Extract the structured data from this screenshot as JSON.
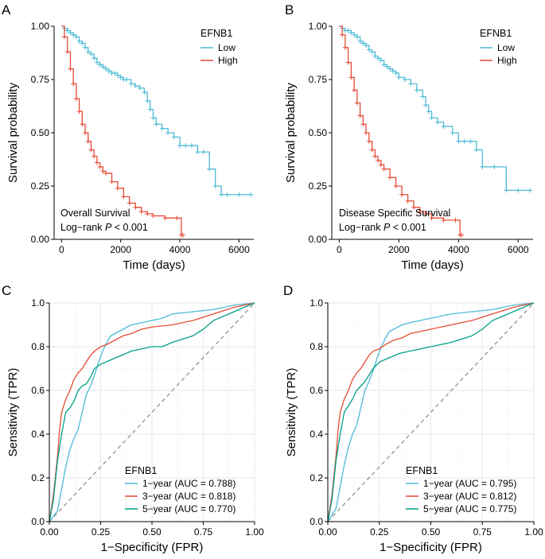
{
  "colors": {
    "low": "#4DBBD5",
    "high": "#E64B35",
    "y1": "#4DBBD5",
    "y3": "#E64B35",
    "y5": "#00A087",
    "grid": "#E6E6E6",
    "diag": "#888888"
  },
  "chart_data": [
    {
      "panel": "A",
      "type": "line",
      "title": "",
      "xlabel": "Time (days)",
      "ylabel": "Survival probability",
      "xlim": [
        -250,
        6500
      ],
      "ylim": [
        0,
        1
      ],
      "xticks": [
        0,
        2000,
        4000,
        6000
      ],
      "xtick_labels": [
        "0",
        "2000",
        "4000",
        "6000"
      ],
      "yticks": [
        0,
        0.25,
        0.5,
        0.75,
        1
      ],
      "ytick_labels": [
        "0.00",
        "0.25",
        "0.50",
        "0.75",
        "1.00"
      ],
      "legend_title": "EFNB1",
      "annotation_line1": "Overall Survival",
      "annotation_prefix": "Log−rank ",
      "annotation_italic": "P",
      "annotation_suffix": " < 0.001",
      "series": [
        {
          "name": "Low",
          "color_key": "low",
          "x": [
            0,
            100,
            200,
            300,
            400,
            500,
            600,
            700,
            800,
            900,
            1000,
            1100,
            1200,
            1300,
            1400,
            1500,
            1600,
            1700,
            1800,
            1900,
            2000,
            2100,
            2200,
            2350,
            2500,
            2650,
            2800,
            2900,
            3000,
            3100,
            3200,
            3400,
            3600,
            3800,
            4000,
            4200,
            4400,
            4600,
            4800,
            5000,
            5200,
            5400,
            5600,
            6000,
            6400
          ],
          "y": [
            1.0,
            0.99,
            0.98,
            0.97,
            0.96,
            0.95,
            0.93,
            0.92,
            0.9,
            0.88,
            0.87,
            0.85,
            0.83,
            0.82,
            0.81,
            0.8,
            0.79,
            0.78,
            0.78,
            0.77,
            0.76,
            0.75,
            0.75,
            0.73,
            0.72,
            0.71,
            0.69,
            0.65,
            0.61,
            0.57,
            0.54,
            0.52,
            0.5,
            0.48,
            0.44,
            0.44,
            0.44,
            0.41,
            0.41,
            0.33,
            0.25,
            0.21,
            0.21,
            0.21,
            0.21
          ]
        },
        {
          "name": "High",
          "color_key": "high",
          "x": [
            0,
            100,
            200,
            300,
            400,
            500,
            600,
            700,
            800,
            900,
            1000,
            1100,
            1200,
            1300,
            1400,
            1500,
            1700,
            1900,
            2100,
            2300,
            2500,
            2700,
            2900,
            3100,
            3500,
            3900,
            4050,
            4100
          ],
          "y": [
            1.0,
            0.95,
            0.88,
            0.8,
            0.73,
            0.66,
            0.6,
            0.54,
            0.5,
            0.46,
            0.42,
            0.39,
            0.36,
            0.34,
            0.32,
            0.31,
            0.27,
            0.24,
            0.2,
            0.17,
            0.15,
            0.13,
            0.12,
            0.11,
            0.1,
            0.1,
            0.02,
            0.02
          ]
        }
      ]
    },
    {
      "panel": "B",
      "type": "line",
      "title": "",
      "xlabel": "Time (days)",
      "ylabel": "Survival probability",
      "xlim": [
        -250,
        6500
      ],
      "ylim": [
        0,
        1
      ],
      "xticks": [
        0,
        2000,
        4000,
        6000
      ],
      "xtick_labels": [
        "0",
        "2000",
        "4000",
        "6000"
      ],
      "yticks": [
        0,
        0.25,
        0.5,
        0.75,
        1
      ],
      "ytick_labels": [
        "0.00",
        "0.25",
        "0.50",
        "0.75",
        "1.00"
      ],
      "legend_title": "EFNB1",
      "annotation_line1": "Disease Specific Survival",
      "annotation_prefix": "Log−rank ",
      "annotation_italic": "P",
      "annotation_suffix": " < 0.001",
      "series": [
        {
          "name": "Low",
          "color_key": "low",
          "x": [
            0,
            100,
            200,
            300,
            400,
            500,
            600,
            700,
            800,
            900,
            1000,
            1100,
            1200,
            1300,
            1400,
            1500,
            1600,
            1700,
            1800,
            1900,
            2000,
            2200,
            2400,
            2600,
            2800,
            2900,
            3000,
            3100,
            3300,
            3500,
            3800,
            4000,
            4200,
            4400,
            4600,
            4800,
            5200,
            5600,
            6000,
            6400
          ],
          "y": [
            1.0,
            0.99,
            0.98,
            0.98,
            0.97,
            0.96,
            0.95,
            0.93,
            0.92,
            0.91,
            0.89,
            0.88,
            0.86,
            0.85,
            0.84,
            0.82,
            0.81,
            0.8,
            0.79,
            0.78,
            0.76,
            0.75,
            0.73,
            0.7,
            0.67,
            0.63,
            0.6,
            0.57,
            0.55,
            0.53,
            0.5,
            0.46,
            0.46,
            0.46,
            0.42,
            0.34,
            0.34,
            0.23,
            0.23,
            0.23
          ]
        },
        {
          "name": "High",
          "color_key": "high",
          "x": [
            0,
            100,
            200,
            300,
            400,
            500,
            600,
            700,
            800,
            900,
            1000,
            1100,
            1200,
            1300,
            1400,
            1500,
            1700,
            1900,
            2100,
            2300,
            2500,
            2700,
            2900,
            3100,
            3500,
            3900,
            4050,
            4100
          ],
          "y": [
            1.0,
            0.96,
            0.9,
            0.83,
            0.76,
            0.7,
            0.64,
            0.58,
            0.54,
            0.5,
            0.46,
            0.42,
            0.39,
            0.37,
            0.35,
            0.33,
            0.29,
            0.25,
            0.21,
            0.18,
            0.15,
            0.13,
            0.12,
            0.1,
            0.09,
            0.09,
            0.02,
            0.02
          ]
        }
      ]
    },
    {
      "panel": "C",
      "type": "line",
      "title": "",
      "xlabel": "1−Specificity (FPR)",
      "ylabel": "Sensitivity (TPR)",
      "xlim": [
        0,
        1
      ],
      "ylim": [
        0,
        1
      ],
      "xticks": [
        0,
        0.25,
        0.5,
        0.75,
        1
      ],
      "xtick_labels": [
        "0.00",
        "0.25",
        "0.50",
        "0.75",
        "1.00"
      ],
      "yticks": [
        0,
        0.2,
        0.4,
        0.6,
        0.8,
        1
      ],
      "ytick_labels": [
        "0.0",
        "0.2",
        "0.4",
        "0.6",
        "0.8",
        "1.0"
      ],
      "legend_title": "EFNB1",
      "series": [
        {
          "name": "1−year (AUC = 0.788)",
          "color_key": "y1",
          "x": [
            0,
            0.04,
            0.06,
            0.08,
            0.1,
            0.12,
            0.14,
            0.16,
            0.18,
            0.2,
            0.22,
            0.24,
            0.26,
            0.28,
            0.3,
            0.32,
            0.36,
            0.4,
            0.45,
            0.5,
            0.55,
            0.6,
            0.7,
            0.8,
            0.9,
            1.0
          ],
          "y": [
            0,
            0.05,
            0.15,
            0.25,
            0.33,
            0.38,
            0.42,
            0.5,
            0.58,
            0.62,
            0.67,
            0.73,
            0.78,
            0.82,
            0.85,
            0.86,
            0.88,
            0.9,
            0.91,
            0.92,
            0.93,
            0.95,
            0.96,
            0.97,
            0.99,
            1.0
          ]
        },
        {
          "name": "3−year (AUC = 0.818)",
          "color_key": "y3",
          "x": [
            0,
            0.02,
            0.04,
            0.05,
            0.06,
            0.08,
            0.1,
            0.12,
            0.14,
            0.16,
            0.18,
            0.2,
            0.22,
            0.25,
            0.28,
            0.32,
            0.36,
            0.4,
            0.45,
            0.5,
            0.6,
            0.7,
            0.8,
            0.9,
            1.0
          ],
          "y": [
            0,
            0.12,
            0.3,
            0.42,
            0.5,
            0.56,
            0.6,
            0.65,
            0.68,
            0.7,
            0.73,
            0.76,
            0.78,
            0.8,
            0.81,
            0.83,
            0.85,
            0.86,
            0.88,
            0.89,
            0.9,
            0.92,
            0.95,
            0.98,
            1.0
          ]
        },
        {
          "name": "5−year (AUC = 0.770)",
          "color_key": "y5",
          "x": [
            0,
            0.02,
            0.04,
            0.06,
            0.08,
            0.1,
            0.12,
            0.14,
            0.16,
            0.18,
            0.2,
            0.22,
            0.25,
            0.3,
            0.35,
            0.4,
            0.45,
            0.5,
            0.55,
            0.6,
            0.7,
            0.75,
            0.8,
            0.9,
            1.0
          ],
          "y": [
            0,
            0.1,
            0.28,
            0.4,
            0.5,
            0.52,
            0.55,
            0.6,
            0.62,
            0.63,
            0.66,
            0.7,
            0.72,
            0.74,
            0.76,
            0.78,
            0.79,
            0.8,
            0.8,
            0.82,
            0.85,
            0.88,
            0.92,
            0.96,
            1.0
          ]
        }
      ]
    },
    {
      "panel": "D",
      "type": "line",
      "title": "",
      "xlabel": "1−Specificity (FPR)",
      "ylabel": "Sensitivity (TPR)",
      "xlim": [
        0,
        1
      ],
      "ylim": [
        0,
        1
      ],
      "xticks": [
        0,
        0.25,
        0.5,
        0.75,
        1
      ],
      "xtick_labels": [
        "0.00",
        "0.25",
        "0.50",
        "0.75",
        "1.00"
      ],
      "yticks": [
        0,
        0.2,
        0.4,
        0.6,
        0.8,
        1
      ],
      "ytick_labels": [
        "0.0",
        "0.2",
        "0.4",
        "0.6",
        "0.8",
        "1.0"
      ],
      "legend_title": "EFNB1",
      "series": [
        {
          "name": "1−year (AUC = 0.795)",
          "color_key": "y1",
          "x": [
            0,
            0.04,
            0.06,
            0.08,
            0.1,
            0.12,
            0.14,
            0.16,
            0.18,
            0.2,
            0.22,
            0.24,
            0.26,
            0.28,
            0.3,
            0.32,
            0.36,
            0.4,
            0.45,
            0.5,
            0.55,
            0.6,
            0.7,
            0.8,
            0.9,
            1.0
          ],
          "y": [
            0,
            0.06,
            0.16,
            0.26,
            0.34,
            0.4,
            0.44,
            0.52,
            0.6,
            0.64,
            0.69,
            0.75,
            0.8,
            0.84,
            0.87,
            0.88,
            0.9,
            0.91,
            0.92,
            0.93,
            0.94,
            0.95,
            0.96,
            0.97,
            0.99,
            1.0
          ]
        },
        {
          "name": "3−year (AUC = 0.812)",
          "color_key": "y3",
          "x": [
            0,
            0.02,
            0.04,
            0.05,
            0.06,
            0.08,
            0.1,
            0.12,
            0.14,
            0.16,
            0.18,
            0.2,
            0.22,
            0.25,
            0.28,
            0.32,
            0.36,
            0.4,
            0.45,
            0.5,
            0.6,
            0.7,
            0.8,
            0.9,
            1.0
          ],
          "y": [
            0,
            0.12,
            0.3,
            0.42,
            0.5,
            0.56,
            0.6,
            0.65,
            0.68,
            0.7,
            0.73,
            0.76,
            0.78,
            0.79,
            0.81,
            0.83,
            0.84,
            0.86,
            0.87,
            0.88,
            0.9,
            0.92,
            0.95,
            0.98,
            1.0
          ]
        },
        {
          "name": "5−year (AUC = 0.775)",
          "color_key": "y5",
          "x": [
            0,
            0.02,
            0.04,
            0.06,
            0.08,
            0.1,
            0.12,
            0.14,
            0.16,
            0.18,
            0.2,
            0.22,
            0.25,
            0.3,
            0.35,
            0.4,
            0.45,
            0.5,
            0.55,
            0.6,
            0.7,
            0.75,
            0.8,
            0.9,
            1.0
          ],
          "y": [
            0,
            0.1,
            0.28,
            0.4,
            0.5,
            0.53,
            0.56,
            0.6,
            0.62,
            0.64,
            0.67,
            0.7,
            0.73,
            0.75,
            0.77,
            0.78,
            0.79,
            0.8,
            0.81,
            0.82,
            0.85,
            0.88,
            0.92,
            0.96,
            1.0
          ]
        }
      ]
    }
  ]
}
